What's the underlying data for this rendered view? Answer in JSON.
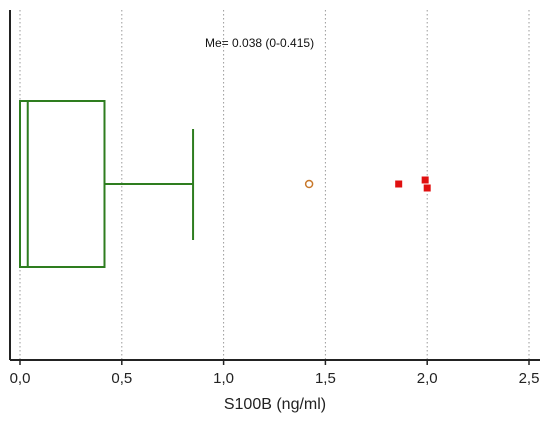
{
  "chart_data": {
    "type": "boxplot",
    "orientation": "horizontal",
    "xlabel": "S100B (ng/ml)",
    "xlim": [
      -0.03,
      2.55
    ],
    "xticks": [
      0.0,
      0.5,
      1.0,
      1.5,
      2.0,
      2.5
    ],
    "xtick_labels": [
      "0,0",
      "0,5",
      "1,0",
      "1,5",
      "2,0",
      "2,5"
    ],
    "grid": "vertical dotted lines at ticks",
    "annotation": "Me= 0.038 (0-0.415)",
    "box": {
      "min": 0.0,
      "q1": 0.0,
      "median": 0.038,
      "q3": 0.415,
      "whisker_high": 0.85
    },
    "outliers": [
      {
        "x": 1.42,
        "kind": "outside"
      },
      {
        "x": 1.86,
        "kind": "far-out"
      },
      {
        "x": 1.99,
        "kind": "far-out"
      },
      {
        "x": 2.0,
        "kind": "far-out"
      }
    ],
    "colors": {
      "box": "#2e7d1f",
      "outside_marker": "#c8782a",
      "far_out_marker": "#e01010",
      "grid": "#9a9a9a",
      "axis": "#222222"
    }
  }
}
